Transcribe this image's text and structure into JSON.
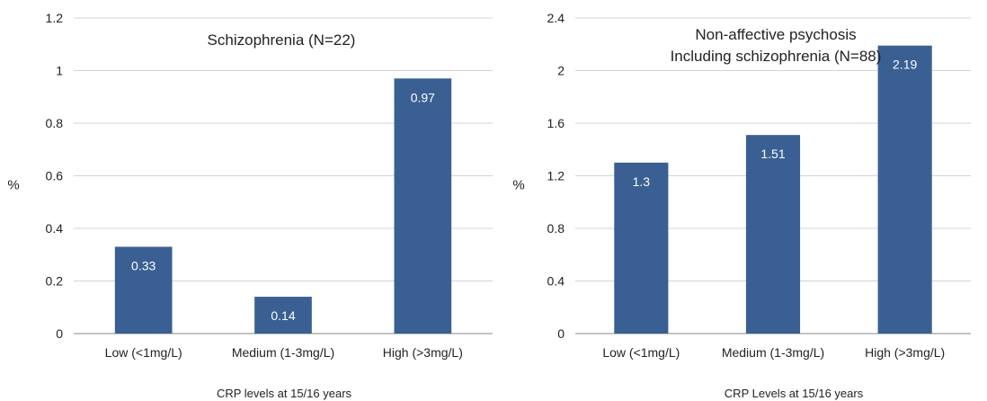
{
  "chart_data": [
    {
      "type": "bar",
      "title_lines": [
        "Schizophrenia (N=22)"
      ],
      "categories": [
        "Low (<1mg/L)",
        "Medium (1-3mg/L)",
        "High (>3mg/L)"
      ],
      "values": [
        0.33,
        0.14,
        0.97
      ],
      "value_labels": [
        "0.33",
        "0.14",
        "0.97"
      ],
      "xlabel": "CRP levels at 15/16 years",
      "ylabel": "%",
      "ylim": [
        0,
        1.2
      ],
      "yticks": [
        0,
        0.2,
        0.4,
        0.6,
        0.8,
        1,
        1.2
      ],
      "ytick_labels": [
        "0",
        "0.2",
        "0.4",
        "0.6",
        "0.8",
        "1",
        "1.2"
      ],
      "grid": true,
      "bar_color": "#3a5f93"
    },
    {
      "type": "bar",
      "title_lines": [
        "Non-affective psychosis",
        "Including schizophrenia (N=88)"
      ],
      "categories": [
        "Low (<1mg/L)",
        "Medium (1-3mg/L)",
        "High (>3mg/L)"
      ],
      "values": [
        1.3,
        1.51,
        2.19
      ],
      "value_labels": [
        "1.3",
        "1.51",
        "2.19"
      ],
      "xlabel": "CRP Levels at 15/16 years",
      "ylabel": "%",
      "ylim": [
        0,
        2.4
      ],
      "yticks": [
        0,
        0.4,
        0.8,
        1.2,
        1.6,
        2,
        2.4
      ],
      "ytick_labels": [
        "0",
        "0.4",
        "0.8",
        "1.2",
        "1.6",
        "2",
        "2.4"
      ],
      "grid": true,
      "bar_color": "#3a5f93"
    }
  ]
}
